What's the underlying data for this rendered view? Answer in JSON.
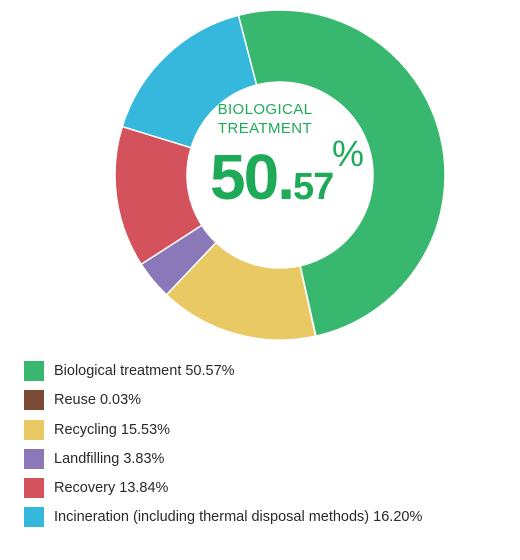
{
  "chart_data": {
    "type": "pie",
    "donut": true,
    "center_label": {
      "title_line1": "BIOLOGICAL",
      "title_line2": "TREATMENT",
      "value_int": "50.",
      "value_dec": "57",
      "unit": "%"
    },
    "slices": [
      {
        "label": "Biological treatment 50.57%",
        "value": 50.57,
        "color": "#38b86e"
      },
      {
        "label": "Reuse 0.03%",
        "value": 0.03,
        "color": "#7a4a34"
      },
      {
        "label": "Recycling 15.53%",
        "value": 15.53,
        "color": "#e9c964"
      },
      {
        "label": "Landfilling 3.83%",
        "value": 3.83,
        "color": "#8b78b8"
      },
      {
        "label": "Recovery 13.84%",
        "value": 13.84,
        "color": "#d4525b"
      },
      {
        "label": "Incineration (including thermal disposal methods) 16.20%",
        "value": 16.2,
        "color": "#36b8dc"
      }
    ],
    "legend_position": "bottom-left"
  }
}
